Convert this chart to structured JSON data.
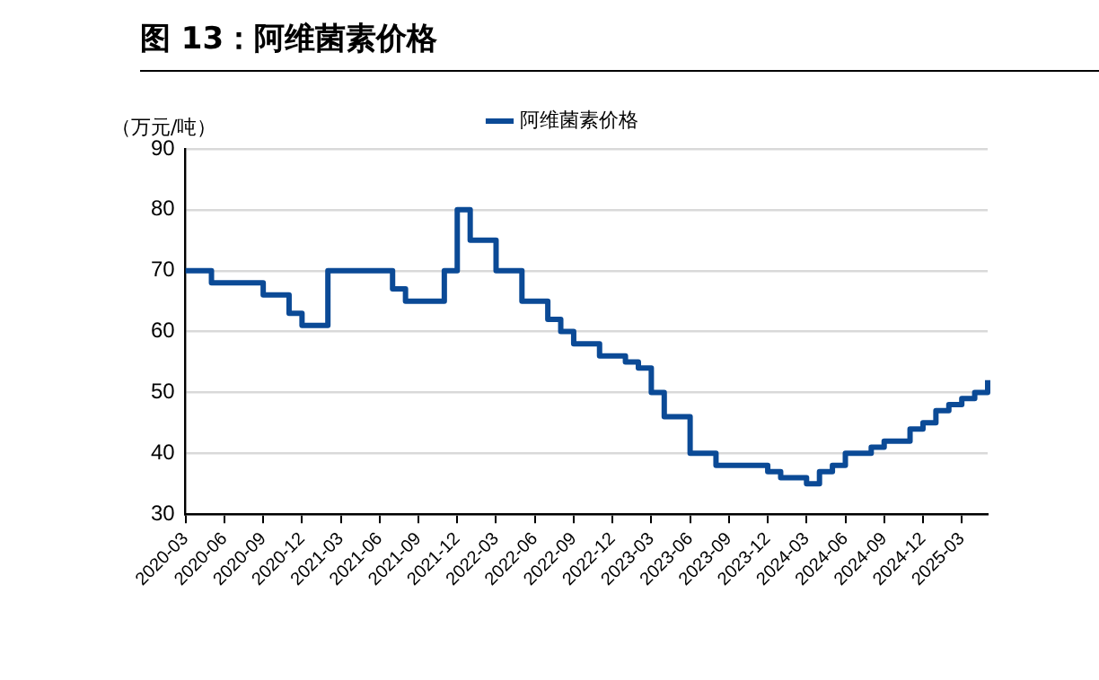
{
  "chart_data": {
    "type": "step",
    "title": "图 13：阿维菌素价格",
    "ylabel": "（万元/吨）",
    "categories": [
      "2020-03",
      null,
      null,
      "2020-06",
      null,
      null,
      "2020-09",
      null,
      null,
      "2020-12",
      null,
      null,
      "2021-03",
      null,
      null,
      "2021-06",
      null,
      null,
      "2021-09",
      null,
      null,
      "2021-12",
      null,
      null,
      "2022-03",
      null,
      null,
      "2022-06",
      null,
      null,
      "2022-09",
      null,
      null,
      "2022-12",
      null,
      null,
      "2023-03",
      null,
      null,
      "2023-06",
      null,
      null,
      "2023-09",
      null,
      null,
      "2023-12",
      null,
      null,
      "2024-03",
      null,
      null,
      "2024-06",
      null,
      null,
      "2024-09",
      null,
      null,
      "2024-12",
      null,
      null,
      "2025-03",
      null,
      null
    ],
    "series": [
      {
        "name": "阿维菌素价格",
        "color": "#0b4a96",
        "values": [
          70,
          70,
          68,
          68,
          68,
          68,
          66,
          66,
          63,
          61,
          61,
          70,
          70,
          70,
          70,
          70,
          67,
          65,
          65,
          65,
          70,
          80,
          75,
          75,
          70,
          70,
          65,
          65,
          62,
          60,
          58,
          58,
          56,
          56,
          55,
          54,
          50,
          46,
          46,
          40,
          40,
          38,
          38,
          38,
          38,
          37,
          36,
          36,
          35,
          37,
          38,
          40,
          40,
          41,
          42,
          42,
          44,
          45,
          47,
          48,
          49,
          50,
          52
        ]
      }
    ],
    "ylim": [
      30,
      90
    ],
    "yticks": [
      30,
      40,
      50,
      60,
      70,
      80,
      90
    ],
    "grid": "y",
    "legend": "top",
    "marker": "none",
    "line_style": "solid"
  }
}
